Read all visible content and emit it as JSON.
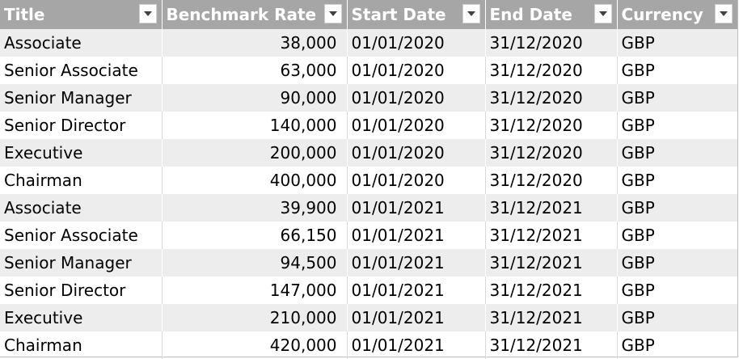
{
  "table": {
    "columns": [
      {
        "label": "Title"
      },
      {
        "label": "Benchmark Rate"
      },
      {
        "label": "Start Date"
      },
      {
        "label": "End Date"
      },
      {
        "label": "Currency"
      }
    ],
    "rows": [
      [
        "Associate",
        "38,000",
        "01/01/2020",
        "31/12/2020",
        "GBP"
      ],
      [
        "Senior Associate",
        "63,000",
        "01/01/2020",
        "31/12/2020",
        "GBP"
      ],
      [
        "Senior Manager",
        "90,000",
        "01/01/2020",
        "31/12/2020",
        "GBP"
      ],
      [
        "Senior Director",
        "140,000",
        "01/01/2020",
        "31/12/2020",
        "GBP"
      ],
      [
        "Executive",
        "200,000",
        "01/01/2020",
        "31/12/2020",
        "GBP"
      ],
      [
        "Chairman",
        "400,000",
        "01/01/2020",
        "31/12/2020",
        "GBP"
      ],
      [
        "Associate",
        "39,900",
        "01/01/2021",
        "31/12/2021",
        "GBP"
      ],
      [
        "Senior Associate",
        "66,150",
        "01/01/2021",
        "31/12/2021",
        "GBP"
      ],
      [
        "Senior Manager",
        "94,500",
        "01/01/2021",
        "31/12/2021",
        "GBP"
      ],
      [
        "Senior Director",
        "147,000",
        "01/01/2021",
        "31/12/2021",
        "GBP"
      ],
      [
        "Executive",
        "210,000",
        "01/01/2021",
        "31/12/2021",
        "GBP"
      ],
      [
        "Chairman",
        "420,000",
        "01/01/2021",
        "31/12/2021",
        "GBP"
      ]
    ]
  },
  "icons": {
    "filter": "dropdown-arrow-icon"
  },
  "colors": {
    "header_bg": "#a6a6a6",
    "header_text": "#ffffff",
    "band_bg": "#ededed",
    "row_bg": "#ffffff"
  }
}
